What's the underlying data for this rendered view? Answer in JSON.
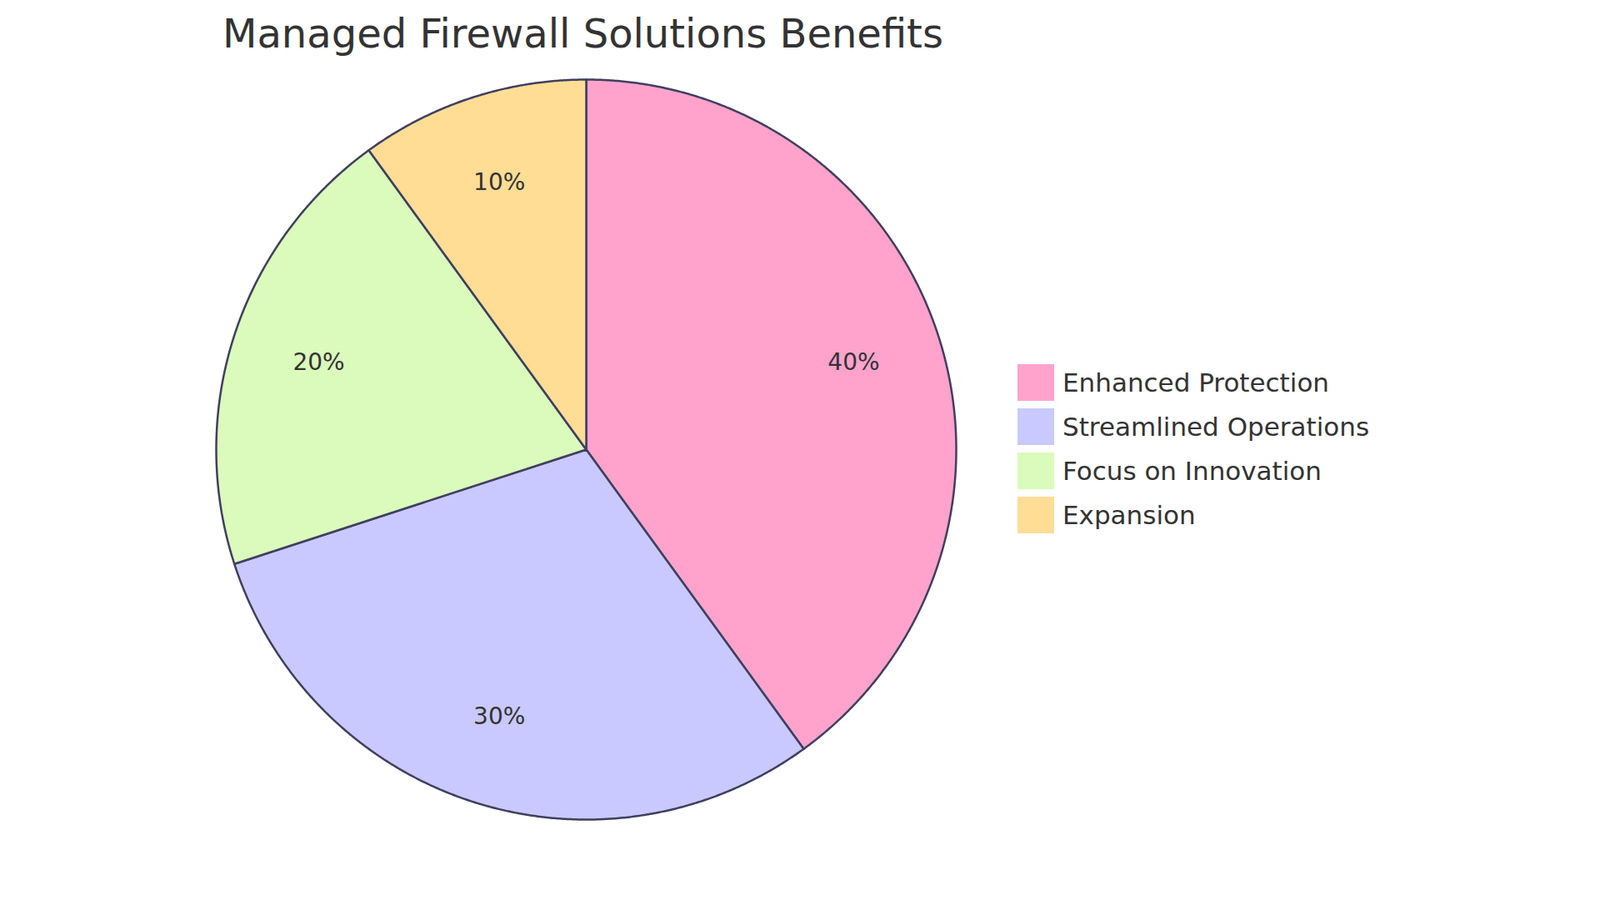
{
  "chart_data": {
    "type": "pie",
    "title": "Managed Firewall Solutions Benefits",
    "categories": [
      "Enhanced Protection",
      "Streamlined Operations",
      "Focus on Innovation",
      "Expansion"
    ],
    "values": [
      40,
      30,
      20,
      10
    ],
    "value_labels": [
      "40%",
      "30%",
      "20%",
      "10%"
    ],
    "colors": [
      "#ffa3cc",
      "#c9c9ff",
      "#dafbbb",
      "#ffdd95"
    ],
    "data_labels": true,
    "legend": "right"
  }
}
